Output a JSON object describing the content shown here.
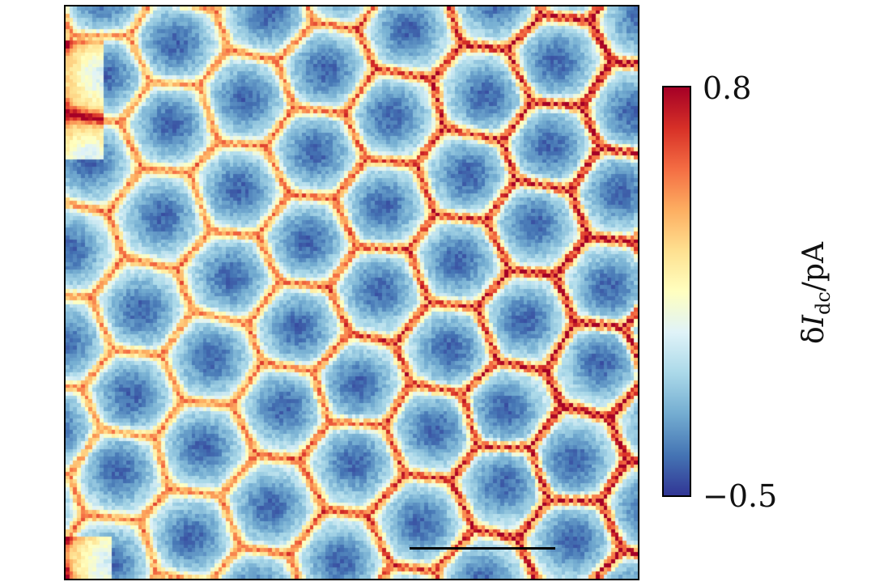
{
  "chart_data": {
    "type": "heatmap",
    "title": "",
    "xlabel": "",
    "ylabel": "",
    "colorbar": {
      "label": "δI_dc/pA",
      "label_parts": {
        "prefix": "δ",
        "symbol": "I",
        "subscript": "dc",
        "suffix": "/pA"
      },
      "min": -0.5,
      "max": 0.8,
      "min_label": "−0.5",
      "max_label": "0.8",
      "colormap": "RdYlBu_r",
      "colors": [
        "#313695",
        "#4575b4",
        "#74add1",
        "#abd9e9",
        "#e0f3f8",
        "#ffffbf",
        "#fee090",
        "#fdae61",
        "#f46d43",
        "#d73027",
        "#a50026"
      ]
    },
    "pattern": "triangular lattice of low-current (blue) domains separated by bright yellow domain walls, with high-current (red) triangular regions concentrated at the right side",
    "scale_bar": true,
    "grid": false
  }
}
